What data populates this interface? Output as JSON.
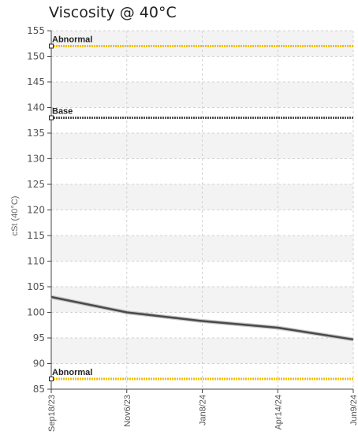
{
  "chart_data": {
    "type": "line",
    "title": "Viscosity @ 40°C",
    "ylabel": "cSt (40°C)",
    "xlabel": "",
    "ylim": [
      85,
      155
    ],
    "yticks": [
      85,
      90,
      95,
      100,
      105,
      110,
      115,
      120,
      125,
      130,
      135,
      140,
      145,
      150,
      155
    ],
    "x_tick_labels": [
      "Sep18/23",
      "Nov6/23",
      "Jan8/24",
      "Apr14/24",
      "Jun9/24"
    ],
    "grid": true,
    "series": [
      {
        "values": [
          103,
          100,
          98.3,
          97,
          94.7
        ]
      }
    ],
    "reference_lines": [
      {
        "label": "Abnormal",
        "value": 152,
        "color": "#f2c100"
      },
      {
        "label": "Base",
        "value": 138,
        "color": "#555555"
      },
      {
        "label": "Abnormal",
        "value": 87,
        "color": "#f2c100"
      }
    ]
  }
}
